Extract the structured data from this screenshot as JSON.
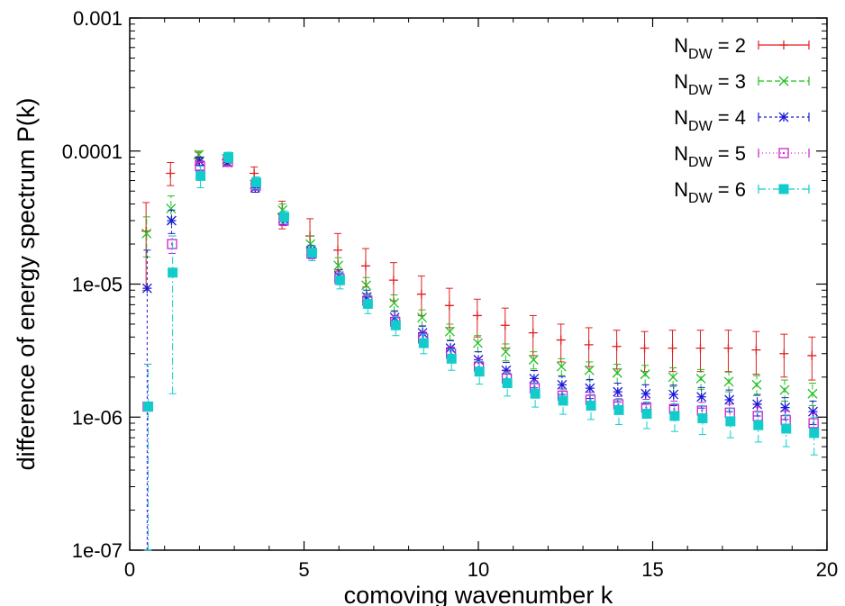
{
  "chart_data": {
    "type": "scatter",
    "title": "",
    "xlabel": "comoving wavenumber k",
    "ylabel": "difference of energy spectrum P(k)",
    "xlim": [
      0,
      20
    ],
    "ylim": [
      1e-07,
      0.001
    ],
    "yscale": "log",
    "x_ticks": [
      0,
      5,
      10,
      15,
      20
    ],
    "x_tick_labels": [
      "0",
      "5",
      "10",
      "15",
      "20"
    ],
    "y_ticks": [
      1e-07,
      1e-06,
      1e-05,
      0.0001,
      0.001
    ],
    "y_tick_labels": [
      "1e-07",
      "1e-06",
      "1e-05",
      "0.0001",
      "0.001"
    ],
    "grid": false,
    "legend_position": "top-right",
    "x": [
      0.5,
      1.2,
      2.0,
      2.8,
      3.6,
      4.4,
      5.2,
      6.0,
      6.8,
      7.6,
      8.4,
      9.2,
      10.0,
      10.8,
      11.6,
      12.4,
      13.2,
      14.0,
      14.8,
      15.6,
      16.4,
      17.2,
      18.0,
      18.8,
      19.6
    ],
    "series": [
      {
        "label": "N",
        "sub": "DW",
        "suffix": " = 2",
        "color": "#dd1f1f",
        "marker": "plus",
        "dash": "",
        "values": [
          2.5e-05,
          6.8e-05,
          8.8e-05,
          8.6e-05,
          6.8e-05,
          3.4e-05,
          2.3e-05,
          1.8e-05,
          1.37e-05,
          1.07e-05,
          8.4e-06,
          6.9e-06,
          5.8e-06,
          4.9e-06,
          4.3e-06,
          3.8e-06,
          3.5e-06,
          3.4e-06,
          3.3e-06,
          3.3e-06,
          3.3e-06,
          3.3e-06,
          3.2e-06,
          3e-06,
          2.9e-06
        ],
        "lower": [
          9e-06,
          5.5e-05,
          7.8e-05,
          7.8e-05,
          6e-05,
          2.6e-05,
          1.6e-05,
          1.25e-05,
          9.5e-06,
          7.5e-06,
          5.8e-06,
          4.7e-06,
          4e-06,
          3.3e-06,
          2.9e-06,
          2.6e-06,
          2.4e-06,
          2.3e-06,
          2.2e-06,
          2.2e-06,
          2.2e-06,
          2.2e-06,
          2.1e-06,
          2e-06,
          1.9e-06
        ],
        "upper": [
          4.1e-05,
          8.2e-05,
          9.8e-05,
          9.4e-05,
          7.6e-05,
          4.2e-05,
          3.1e-05,
          2.4e-05,
          1.85e-05,
          1.45e-05,
          1.15e-05,
          9.3e-06,
          7.7e-06,
          6.6e-06,
          5.8e-06,
          5e-06,
          4.7e-06,
          4.5e-06,
          4.4e-06,
          4.5e-06,
          4.5e-06,
          4.5e-06,
          4.4e-06,
          4.2e-06,
          4e-06
        ]
      },
      {
        "label": "N",
        "sub": "DW",
        "suffix": " = 3",
        "color": "#20c020",
        "marker": "cross",
        "dash": "6,3",
        "values": [
          2.4e-05,
          3.7e-05,
          9.4e-05,
          8.7e-05,
          5.6e-05,
          3.6e-05,
          2e-05,
          1.38e-05,
          9.8e-06,
          7.2e-06,
          5.6e-06,
          4.4e-06,
          3.6e-06,
          3.1e-06,
          2.7e-06,
          2.4e-06,
          2.25e-06,
          2.15e-06,
          2.1e-06,
          2e-06,
          1.95e-06,
          1.85e-06,
          1.75e-06,
          1.6e-06,
          1.5e-06
        ],
        "lower": [
          1.6e-05,
          2.9e-05,
          8.6e-05,
          8e-05,
          5.1e-05,
          3.2e-05,
          1.75e-05,
          1.2e-05,
          8.5e-06,
          6.2e-06,
          4.8e-06,
          3.8e-06,
          3.1e-06,
          2.65e-06,
          2.3e-06,
          2.05e-06,
          1.9e-06,
          1.8e-06,
          1.75e-06,
          1.7e-06,
          1.62e-06,
          1.55e-06,
          1.45e-06,
          1.32e-06,
          1.22e-06
        ],
        "upper": [
          3.2e-05,
          4.6e-05,
          0.0001,
          9.4e-05,
          6.1e-05,
          4e-05,
          2.3e-05,
          1.58e-05,
          1.12e-05,
          8.3e-06,
          6.4e-06,
          5e-06,
          4.1e-06,
          3.55e-06,
          3.1e-06,
          2.75e-06,
          2.6e-06,
          2.5e-06,
          2.45e-06,
          2.35e-06,
          2.28e-06,
          2.18e-06,
          2.05e-06,
          1.9e-06,
          1.8e-06
        ]
      },
      {
        "label": "N",
        "sub": "DW",
        "suffix": " = 4",
        "color": "#1a1ad8",
        "marker": "star",
        "dash": "3,3",
        "values": [
          9.3e-06,
          3e-05,
          8.4e-05,
          8.2e-05,
          5.3e-05,
          3.1e-05,
          1.78e-05,
          1.15e-05,
          8e-06,
          5.6e-06,
          4.3e-06,
          3.3e-06,
          2.7e-06,
          2.25e-06,
          1.95e-06,
          1.75e-06,
          1.65e-06,
          1.55e-06,
          1.5e-06,
          1.48e-06,
          1.42e-06,
          1.35e-06,
          1.25e-06,
          1.18e-06,
          1.1e-06
        ],
        "lower": [
          1e-07,
          2.4e-05,
          7.8e-05,
          7.7e-05,
          4.9e-05,
          2.8e-05,
          1.6e-05,
          1.02e-05,
          7e-06,
          4.9e-06,
          3.75e-06,
          2.85e-06,
          2.3e-06,
          1.92e-06,
          1.66e-06,
          1.48e-06,
          1.38e-06,
          1.3e-06,
          1.25e-06,
          1.22e-06,
          1.17e-06,
          1.1e-06,
          1.02e-06,
          9.6e-07,
          8.8e-07
        ],
        "upper": [
          1.8e-05,
          3.6e-05,
          9e-05,
          8.7e-05,
          5.7e-05,
          3.4e-05,
          1.96e-05,
          1.28e-05,
          9e-06,
          6.3e-06,
          4.85e-06,
          3.75e-06,
          3.1e-06,
          2.58e-06,
          2.24e-06,
          2.02e-06,
          1.92e-06,
          1.8e-06,
          1.75e-06,
          1.74e-06,
          1.67e-06,
          1.6e-06,
          1.48e-06,
          1.4e-06,
          1.32e-06
        ]
      },
      {
        "label": "N",
        "sub": "DW",
        "suffix": " = 5",
        "color": "#cc22cc",
        "marker": "square-open",
        "dash": "1,3",
        "values": [
          1.2e-06,
          2e-05,
          7.7e-05,
          8.3e-05,
          5.5e-05,
          3e-05,
          1.7e-05,
          1.1e-05,
          7.5e-06,
          5.2e-06,
          3.9e-06,
          3e-06,
          2.4e-06,
          1.95e-06,
          1.65e-06,
          1.45e-06,
          1.35e-06,
          1.25e-06,
          1.18e-06,
          1.15e-06,
          1.12e-06,
          1.08e-06,
          1.02e-06,
          9.5e-07,
          9e-07
        ],
        "lower": [
          1e-07,
          1.7e-05,
          7.2e-05,
          7.8e-05,
          5.1e-05,
          2.75e-05,
          1.55e-05,
          9.9e-06,
          6.7e-06,
          4.6e-06,
          3.45e-06,
          2.63e-06,
          2.1e-06,
          1.7e-06,
          1.43e-06,
          1.25e-06,
          1.16e-06,
          1.07e-06,
          1e-06,
          9.8e-07,
          9.5e-07,
          9.1e-07,
          8.5e-07,
          7.9e-07,
          7.4e-07
        ],
        "upper": [
          2.5e-06,
          2.3e-05,
          8.2e-05,
          8.8e-05,
          5.9e-05,
          3.25e-05,
          1.85e-05,
          1.21e-05,
          8.3e-06,
          5.8e-06,
          4.35e-06,
          3.37e-06,
          2.7e-06,
          2.2e-06,
          1.87e-06,
          1.65e-06,
          1.54e-06,
          1.43e-06,
          1.36e-06,
          1.32e-06,
          1.29e-06,
          1.25e-06,
          1.19e-06,
          1.11e-06,
          1.06e-06
        ]
      },
      {
        "label": "N",
        "sub": "DW",
        "suffix": " = 6",
        "color": "#12cccc",
        "marker": "square-filled",
        "dash": "8,3,2,3",
        "values": [
          1.2e-06,
          1.22e-05,
          6.5e-05,
          9e-05,
          5.8e-05,
          3.2e-05,
          1.72e-05,
          1.07e-05,
          7.1e-06,
          4.9e-06,
          3.6e-06,
          2.75e-06,
          2.2e-06,
          1.8e-06,
          1.5e-06,
          1.33e-06,
          1.22e-06,
          1.13e-06,
          1.06e-06,
          1.02e-06,
          9.8e-07,
          9.3e-07,
          8.7e-07,
          8.2e-07,
          7.6e-07
        ],
        "lower": [
          1e-07,
          1.5e-06,
          5.3e-05,
          8.2e-05,
          5.2e-05,
          2.85e-05,
          1.5e-05,
          9.2e-06,
          6e-06,
          4.1e-06,
          3e-06,
          2.25e-06,
          1.77e-06,
          1.44e-06,
          1.19e-06,
          1.05e-06,
          9.6e-07,
          8.8e-07,
          8.2e-07,
          7.8e-07,
          7.4e-07,
          7e-07,
          6.5e-07,
          6e-07,
          5.2e-07
        ],
        "upper": [
          2.5e-06,
          2.3e-05,
          7.7e-05,
          9.8e-05,
          6.4e-05,
          3.55e-05,
          1.94e-05,
          1.22e-05,
          8.2e-06,
          5.7e-06,
          4.2e-06,
          3.25e-06,
          2.63e-06,
          2.16e-06,
          1.81e-06,
          1.61e-06,
          1.48e-06,
          1.38e-06,
          1.3e-06,
          1.26e-06,
          1.22e-06,
          1.16e-06,
          1.09e-06,
          1.04e-06,
          1e-06
        ]
      }
    ]
  }
}
